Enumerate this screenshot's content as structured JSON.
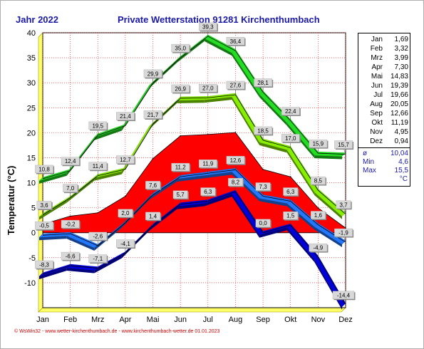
{
  "header": {
    "left": "Jahr  2022",
    "right": "Private Wetterstation 91281 Kirchenthumbach"
  },
  "footer": "© WsWin32 - www.wetter-kirchenthumbach.de - www.kirchenthumbach-wetter.de  01.01.2023",
  "panel": {
    "months": [
      {
        "m": "Jan",
        "v": "1,69"
      },
      {
        "m": "Feb",
        "v": "3,32"
      },
      {
        "m": "Mrz",
        "v": "3,99"
      },
      {
        "m": "Apr",
        "v": "7,30"
      },
      {
        "m": "Mai",
        "v": "14,83"
      },
      {
        "m": "Jun",
        "v": "19,39"
      },
      {
        "m": "Jul",
        "v": "19,66"
      },
      {
        "m": "Aug",
        "v": "20,05"
      },
      {
        "m": "Sep",
        "v": "12,66"
      },
      {
        "m": "Okt",
        "v": "11,19"
      },
      {
        "m": "Nov",
        "v": "4,95"
      },
      {
        "m": "Dez",
        "v": "0,94"
      }
    ],
    "stats": [
      {
        "k": "ø",
        "v": "10,04"
      },
      {
        "k": "Min",
        "v": "4,6"
      },
      {
        "k": "Max",
        "v": "15,5"
      }
    ],
    "unit": "°C"
  },
  "colors": {
    "mean_fill": "#ff0000",
    "abs_max": "#22dd22",
    "avg_max": "#88ee00",
    "avg_min": "#2277ff",
    "abs_min": "#0000dd",
    "grid": "#ff0000",
    "plot_bg": "#ffffff"
  },
  "chart_data": {
    "type": "area",
    "ylabel": "Temperatur  (°C)",
    "categories": [
      "Jan",
      "Feb",
      "Mrz",
      "Apr",
      "Mai",
      "Jun",
      "Jul",
      "Aug",
      "Sep",
      "Okt",
      "Nov",
      "Dez"
    ],
    "ylim": [
      -15,
      40
    ],
    "yticks": [
      -10,
      -5,
      0,
      5,
      10,
      15,
      20,
      25,
      30,
      35,
      40
    ],
    "grid": true,
    "series": [
      {
        "key": "abs_max",
        "values": [
          10.8,
          12.4,
          19.5,
          21.4,
          29.9,
          35.0,
          39.3,
          36.4,
          28.1,
          22.4,
          15.9,
          15.7
        ],
        "labels": [
          "10,8",
          "12,4",
          "19,5",
          "21,4",
          "29,9",
          "35,0",
          "39,3",
          "36,4",
          "28,1",
          "22,4",
          "15,9",
          "15,7"
        ]
      },
      {
        "key": "avg_max",
        "values": [
          3.6,
          7.0,
          11.4,
          12.7,
          21.7,
          26.9,
          27.0,
          27.6,
          18.5,
          17.0,
          8.5,
          3.7
        ],
        "labels": [
          "3,6",
          "7,0",
          "11,4",
          "12,7",
          "21,7",
          "26,9",
          "27,0",
          "27,6",
          "18,5",
          "17,0",
          "8,5",
          "3,7"
        ]
      },
      {
        "key": "mean",
        "values": [
          1.69,
          3.32,
          3.99,
          7.3,
          14.83,
          19.39,
          19.66,
          20.05,
          12.66,
          11.19,
          4.95,
          0.94
        ],
        "labels": []
      },
      {
        "key": "avg_min",
        "values": [
          -0.5,
          -0.2,
          -2.6,
          2.0,
          7.6,
          11.2,
          11.9,
          12.6,
          7.3,
          6.3,
          1.6,
          -1.9
        ],
        "labels": [
          "-0,5",
          "-0,2",
          "-2,6",
          "2,0",
          "7,6",
          "11,2",
          "11,9",
          "12,6",
          "7,3",
          "6,3",
          "1,6",
          "-1,9"
        ]
      },
      {
        "key": "abs_min",
        "values": [
          -8.3,
          -6.6,
          -7.1,
          -4.1,
          1.4,
          5.7,
          6.3,
          8.2,
          0.0,
          1.5,
          -4.9,
          -14.4
        ],
        "labels": [
          "-8,3",
          "-6,6",
          "-7,1",
          "-4,1",
          "1,4",
          "5,7",
          "6,3",
          "8,2",
          "0,0",
          "1,5",
          "-4,9",
          "-14,4"
        ]
      }
    ]
  }
}
